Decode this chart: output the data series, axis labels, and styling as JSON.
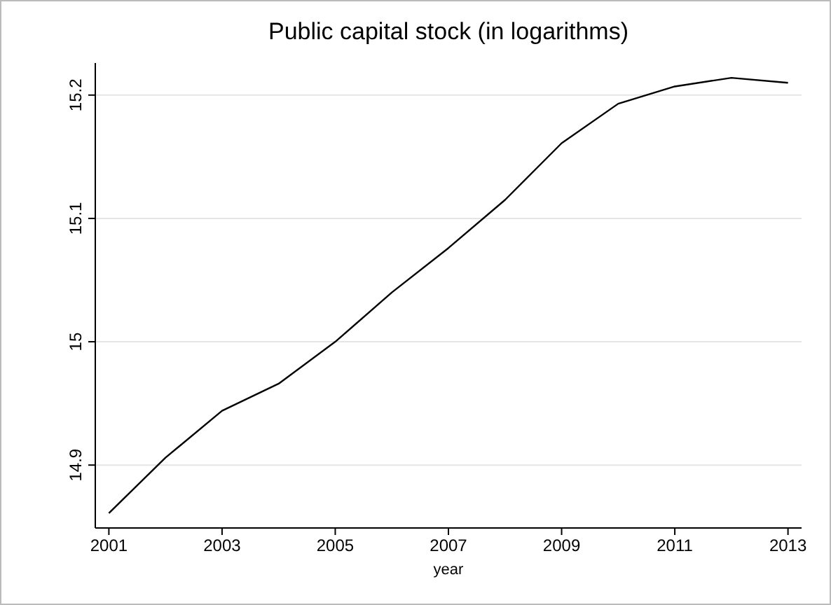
{
  "chart_data": {
    "type": "line",
    "title": "Public capital stock (in logarithms)",
    "xlabel": "year",
    "x": [
      2001,
      2002,
      2003,
      2004,
      2005,
      2006,
      2007,
      2008,
      2009,
      2010,
      2011,
      2012,
      2013
    ],
    "series": [
      {
        "color": "#000000",
        "values": [
          14.861,
          14.906,
          14.944,
          14.966,
          15.0,
          15.04,
          15.076,
          15.115,
          15.161,
          15.193,
          15.207,
          15.214,
          15.21
        ]
      }
    ],
    "xlim": [
      2000.76,
      2013.24
    ],
    "xticks": [
      2001,
      2003,
      2005,
      2007,
      2009,
      2011,
      2013
    ],
    "ylim": [
      14.849,
      15.226
    ],
    "yticks": [
      14.9,
      15.1,
      15.2,
      {
        "value": 15,
        "label": "15"
      }
    ],
    "grid": "y",
    "marker": "none",
    "line_style": "solid"
  }
}
